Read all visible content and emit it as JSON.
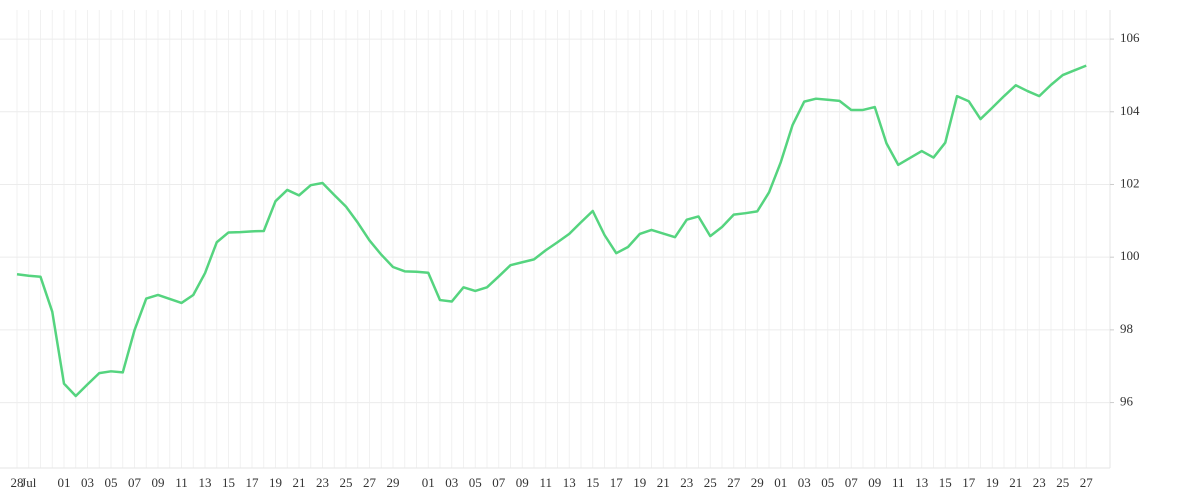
{
  "chart_data": {
    "type": "line",
    "categories": [
      "28",
      "Jul",
      null,
      null,
      "01",
      null,
      "03",
      null,
      "05",
      null,
      "07",
      null,
      "09",
      null,
      "11",
      null,
      "13",
      null,
      "15",
      null,
      "17",
      null,
      "19",
      null,
      "21",
      null,
      "23",
      null,
      "25",
      null,
      "27",
      null,
      "29",
      null,
      null,
      "01",
      null,
      "03",
      null,
      "05",
      null,
      "07",
      null,
      "09",
      null,
      "11",
      null,
      "13",
      null,
      "15",
      null,
      "17",
      null,
      "19",
      null,
      "21",
      null,
      "23",
      null,
      "25",
      null,
      "27",
      null,
      "29",
      null,
      "01",
      null,
      "03",
      null,
      "05",
      null,
      "07",
      null,
      "09",
      null,
      "11",
      null,
      "13",
      null,
      "15",
      null,
      "17",
      null,
      "19",
      null,
      "21",
      null,
      "23",
      null,
      "25",
      null,
      "27"
    ],
    "values": [
      99.53,
      99.49,
      99.46,
      98.5,
      96.52,
      96.18,
      96.5,
      96.81,
      96.86,
      96.83,
      97.99,
      98.86,
      98.96,
      98.85,
      98.74,
      98.96,
      99.56,
      100.41,
      100.68,
      100.69,
      100.71,
      100.72,
      101.54,
      101.85,
      101.7,
      101.98,
      102.04,
      101.71,
      101.39,
      100.95,
      100.46,
      100.07,
      99.73,
      99.61,
      99.6,
      99.57,
      98.82,
      98.78,
      99.17,
      99.07,
      99.17,
      99.47,
      99.78,
      99.86,
      99.94,
      100.19,
      100.41,
      100.64,
      100.96,
      101.27,
      100.61,
      100.11,
      100.28,
      100.64,
      100.75,
      100.65,
      100.55,
      101.03,
      101.12,
      100.58,
      100.83,
      101.17,
      101.21,
      101.26,
      101.78,
      102.61,
      103.63,
      104.28,
      104.36,
      104.33,
      104.3,
      104.05,
      104.05,
      104.13,
      103.13,
      102.54,
      102.73,
      102.92,
      102.74,
      103.15,
      104.43,
      104.29,
      103.8,
      104.11,
      104.43,
      104.73,
      104.57,
      104.43,
      104.74,
      105.01,
      105.14,
      105.27
    ],
    "color": "#55d47f",
    "ylim": [
      94.2,
      106.8
    ],
    "yticks": [
      96,
      98,
      100,
      102,
      104,
      106
    ],
    "grid": true
  }
}
